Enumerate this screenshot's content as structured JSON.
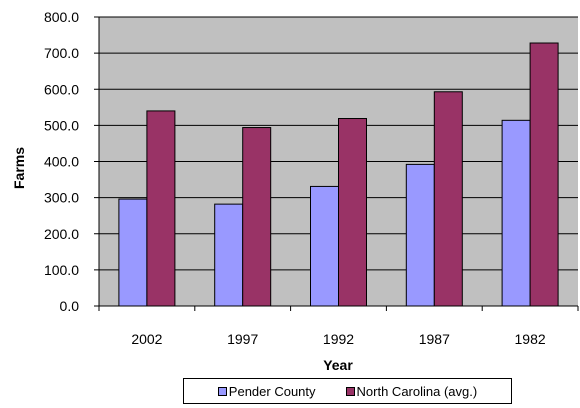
{
  "chart_data": {
    "type": "bar",
    "categories": [
      "2002",
      "1997",
      "1992",
      "1987",
      "1982"
    ],
    "series": [
      {
        "name": "Pender County",
        "values": [
          296,
          282,
          331,
          392,
          514
        ],
        "color": "#9999ff"
      },
      {
        "name": "North Carolina (avg.)",
        "values": [
          540,
          494,
          519,
          593,
          728
        ],
        "color": "#993366"
      }
    ],
    "ylim": [
      0,
      800
    ],
    "yticks": [
      "0.0",
      "100.0",
      "200.0",
      "300.0",
      "400.0",
      "500.0",
      "600.0",
      "700.0",
      "800.0"
    ],
    "xlabel": "Year",
    "ylabel": "Farms",
    "grid": true,
    "plot_background": "#c0c0c0",
    "legend_position": "bottom"
  }
}
